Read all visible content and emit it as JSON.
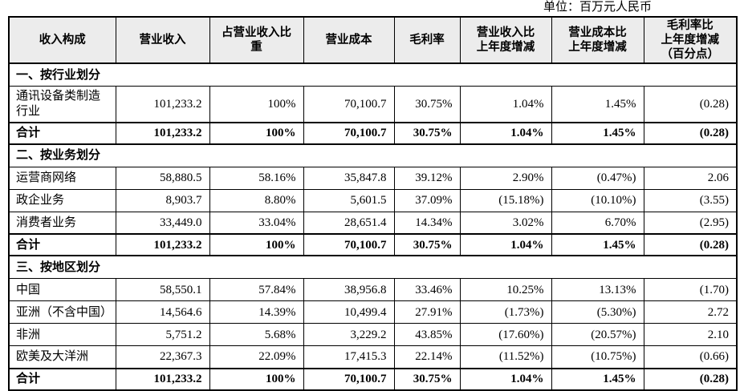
{
  "unit_label": "单位：百万元人民币",
  "colors": {
    "header_bg": "#ececec",
    "border": "#000000",
    "highlight_red": "#f1291d",
    "text": "#000000"
  },
  "table": {
    "columns": [
      "收入构成",
      "营业收入",
      "占营业收入比\n重",
      "营业成本",
      "毛利率",
      "营业收入比\n上年度增减",
      "营业成本比\n上年度增减",
      "毛利率比\n上年度增减\n（百分点）"
    ],
    "highlight_box": {
      "column": "毛利率",
      "value_index": 3,
      "rows": [
        "亚洲（不含中国）",
        "非洲",
        "欧美及大洋洲",
        "合计"
      ],
      "color": "#f1291d"
    },
    "sections": [
      {
        "title": "一、按行业划分",
        "rows": [
          {
            "label": "通讯设备类制造行业",
            "bold": false,
            "highlight": false,
            "values": [
              "101,233.2",
              "100%",
              "70,100.7",
              "30.75%",
              "1.04%",
              "1.45%",
              "(0.28)"
            ]
          },
          {
            "label": "合计",
            "bold": true,
            "highlight": false,
            "values": [
              "101,233.2",
              "100%",
              "70,100.7",
              "30.75%",
              "1.04%",
              "1.45%",
              "(0.28)"
            ]
          }
        ]
      },
      {
        "title": "二、按业务划分",
        "rows": [
          {
            "label": "运营商网络",
            "bold": false,
            "highlight": false,
            "values": [
              "58,880.5",
              "58.16%",
              "35,847.8",
              "39.12%",
              "2.90%",
              "(0.47%)",
              "2.06"
            ]
          },
          {
            "label": "政企业务",
            "bold": false,
            "highlight": false,
            "values": [
              "8,903.7",
              "8.80%",
              "5,601.5",
              "37.09%",
              "(15.18%)",
              "(10.10%)",
              "(3.55)"
            ]
          },
          {
            "label": "消费者业务",
            "bold": false,
            "highlight": false,
            "values": [
              "33,449.0",
              "33.04%",
              "28,651.4",
              "14.34%",
              "3.02%",
              "6.70%",
              "(2.95)"
            ]
          },
          {
            "label": "合计",
            "bold": true,
            "highlight": false,
            "values": [
              "101,233.2",
              "100%",
              "70,100.7",
              "30.75%",
              "1.04%",
              "1.45%",
              "(0.28)"
            ]
          }
        ]
      },
      {
        "title": "三、按地区划分",
        "rows": [
          {
            "label": "中国",
            "bold": false,
            "highlight": false,
            "values": [
              "58,550.1",
              "57.84%",
              "38,956.8",
              "33.46%",
              "10.25%",
              "13.13%",
              "(1.70)"
            ]
          },
          {
            "label": "亚洲（不含中国）",
            "bold": false,
            "highlight": true,
            "values": [
              "14,564.6",
              "14.39%",
              "10,499.4",
              "27.91%",
              "(1.73%)",
              "(5.30%)",
              "2.72"
            ]
          },
          {
            "label": "非洲",
            "bold": false,
            "highlight": true,
            "values": [
              "5,751.2",
              "5.68%",
              "3,229.2",
              "43.85%",
              "(17.60%)",
              "(20.57%)",
              "2.10"
            ]
          },
          {
            "label": "欧美及大洋洲",
            "bold": false,
            "highlight": true,
            "values": [
              "22,367.3",
              "22.09%",
              "17,415.3",
              "22.14%",
              "(11.52%)",
              "(10.75%)",
              "(0.66)"
            ]
          },
          {
            "label": "合计",
            "bold": true,
            "highlight": true,
            "values": [
              "101,233.2",
              "100%",
              "70,100.7",
              "30.75%",
              "1.04%",
              "1.45%",
              "(0.28)"
            ]
          }
        ]
      }
    ]
  }
}
